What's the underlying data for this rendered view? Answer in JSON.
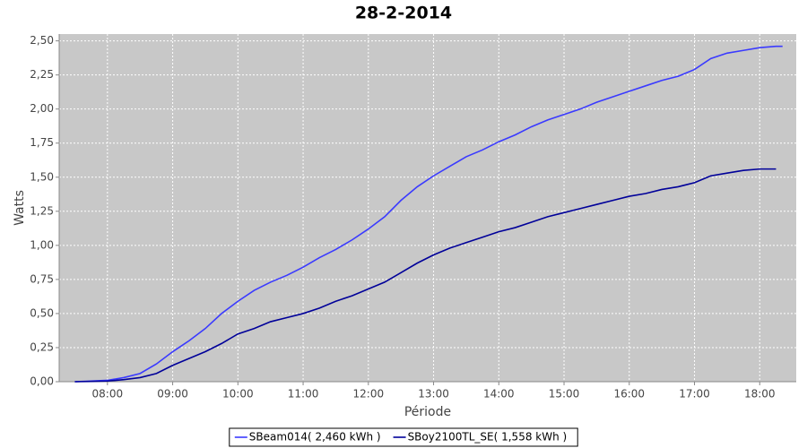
{
  "chart_data": {
    "type": "line",
    "title": "28-2-2014",
    "x_label": "Période",
    "y_label": "Watts",
    "x": [
      7.5,
      7.75,
      8,
      8.25,
      8.5,
      8.75,
      9,
      9.25,
      9.5,
      9.75,
      10,
      10.25,
      10.5,
      10.75,
      11,
      11.25,
      11.5,
      11.75,
      12,
      12.25,
      12.5,
      12.75,
      13,
      13.25,
      13.5,
      13.75,
      14,
      14.25,
      14.5,
      14.75,
      15,
      15.25,
      15.5,
      15.75,
      16,
      16.25,
      16.5,
      16.75,
      17,
      17.25,
      17.5,
      17.75,
      18,
      18.25,
      18.35
    ],
    "series": [
      {
        "name": "SBeam014( 2,460 kWh )",
        "color": "#3a3aff",
        "values": [
          0,
          0.005,
          0.01,
          0.03,
          0.06,
          0.13,
          0.22,
          0.3,
          0.39,
          0.5,
          0.59,
          0.67,
          0.73,
          0.78,
          0.84,
          0.91,
          0.97,
          1.04,
          1.12,
          1.21,
          1.33,
          1.43,
          1.51,
          1.58,
          1.65,
          1.7,
          1.76,
          1.81,
          1.87,
          1.92,
          1.96,
          2.0,
          2.05,
          2.09,
          2.13,
          2.17,
          2.21,
          2.24,
          2.29,
          2.37,
          2.41,
          2.43,
          2.45,
          2.46,
          2.46
        ]
      },
      {
        "name": "SBoy2100TL_SE( 1,558 kWh )",
        "color": "#000099",
        "values": [
          0,
          0.002,
          0.005,
          0.015,
          0.03,
          0.06,
          0.12,
          0.17,
          0.22,
          0.28,
          0.35,
          0.39,
          0.44,
          0.47,
          0.5,
          0.54,
          0.59,
          0.63,
          0.68,
          0.73,
          0.8,
          0.87,
          0.93,
          0.98,
          1.02,
          1.06,
          1.1,
          1.13,
          1.17,
          1.21,
          1.24,
          1.27,
          1.3,
          1.33,
          1.36,
          1.38,
          1.41,
          1.43,
          1.46,
          1.51,
          1.53,
          1.55,
          1.56,
          1.56,
          null
        ]
      }
    ],
    "xlim": [
      7.26,
      18.56
    ],
    "xticks": [
      {
        "value": 8,
        "label": "08:00"
      },
      {
        "value": 9,
        "label": "09:00"
      },
      {
        "value": 10,
        "label": "10:00"
      },
      {
        "value": 11,
        "label": "11:00"
      },
      {
        "value": 12,
        "label": "12:00"
      },
      {
        "value": 13,
        "label": "13:00"
      },
      {
        "value": 14,
        "label": "14:00"
      },
      {
        "value": 15,
        "label": "15:00"
      },
      {
        "value": 16,
        "label": "16:00"
      },
      {
        "value": 17,
        "label": "17:00"
      },
      {
        "value": 18,
        "label": "18:00"
      }
    ],
    "ylim": [
      0,
      2.55
    ],
    "yticks": [
      {
        "value": 0,
        "label": "0,00"
      },
      {
        "value": 0.25,
        "label": "0,25"
      },
      {
        "value": 0.5,
        "label": "0,50"
      },
      {
        "value": 0.75,
        "label": "0,75"
      },
      {
        "value": 1,
        "label": "1,00"
      },
      {
        "value": 1.25,
        "label": "1,25"
      },
      {
        "value": 1.5,
        "label": "1,50"
      },
      {
        "value": 1.75,
        "label": "1,75"
      },
      {
        "value": 2,
        "label": "2,00"
      },
      {
        "value": 2.25,
        "label": "2,25"
      },
      {
        "value": 2.5,
        "label": "2,50"
      }
    ],
    "grid": true,
    "legend": "bottom"
  }
}
